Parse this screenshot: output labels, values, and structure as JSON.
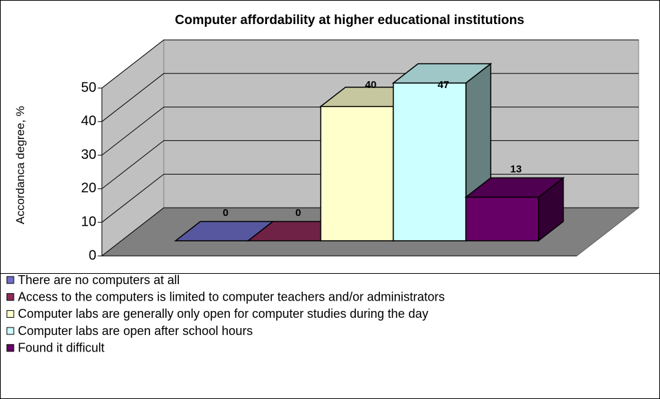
{
  "chart_data": {
    "type": "bar",
    "title": "Computer affordability at higher educational institutions",
    "y_label": "Accordanca degree, %",
    "ylim": [
      0,
      50
    ],
    "yticks": [
      0,
      10,
      20,
      30,
      40,
      50
    ],
    "grid": true,
    "legend": "bottom",
    "series": [
      {
        "name": "There are no computers at all",
        "color": "#7070cc",
        "values": [
          0
        ]
      },
      {
        "name": "Access to the computers is limited to computer teachers and/or administrators",
        "color": "#8e2b5a",
        "values": [
          0
        ]
      },
      {
        "name": "Computer labs are generally only open for computer studies during the day",
        "color": "#ffffcc",
        "values": [
          40
        ]
      },
      {
        "name": "Computer labs are open after school hours",
        "color": "#ccffff",
        "values": [
          47
        ]
      },
      {
        "name": "Found it difficult",
        "color": "#660066",
        "values": [
          13
        ]
      }
    ]
  }
}
